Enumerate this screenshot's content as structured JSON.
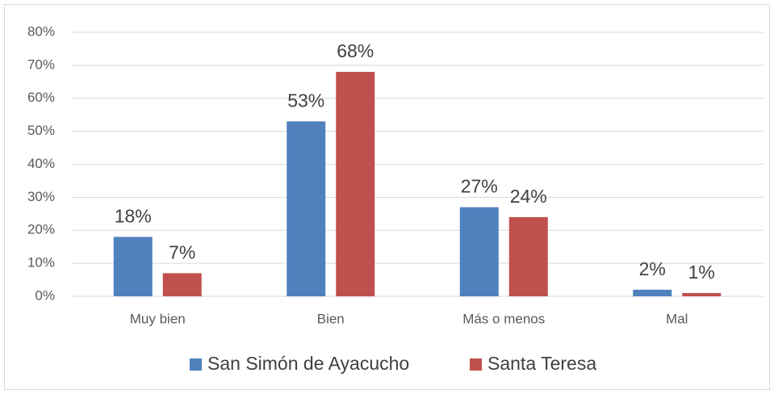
{
  "chart_data": {
    "type": "bar",
    "categories": [
      "Muy bien",
      "Bien",
      "Más o menos",
      "Mal"
    ],
    "series": [
      {
        "name": "San Simón de Ayacucho",
        "color": "#4f81bd",
        "values": [
          18,
          53,
          27,
          2
        ],
        "value_labels": [
          "18%",
          "53%",
          "27%",
          "2%"
        ]
      },
      {
        "name": "Santa Teresa",
        "color": "#c0504d",
        "values": [
          7,
          68,
          24,
          1
        ],
        "value_labels": [
          "7%",
          "68%",
          "24%",
          "1%"
        ]
      }
    ],
    "ylim": [
      0,
      80
    ],
    "yticks": [
      {
        "value": 0,
        "label": "0%"
      },
      {
        "value": 10,
        "label": "10%"
      },
      {
        "value": 20,
        "label": "20%"
      },
      {
        "value": 30,
        "label": "30%"
      },
      {
        "value": 40,
        "label": "40%"
      },
      {
        "value": 50,
        "label": "50%"
      },
      {
        "value": 60,
        "label": "60%"
      },
      {
        "value": 70,
        "label": "70%"
      },
      {
        "value": 80,
        "label": "80%"
      }
    ],
    "grid": true,
    "legend": "bottom"
  }
}
